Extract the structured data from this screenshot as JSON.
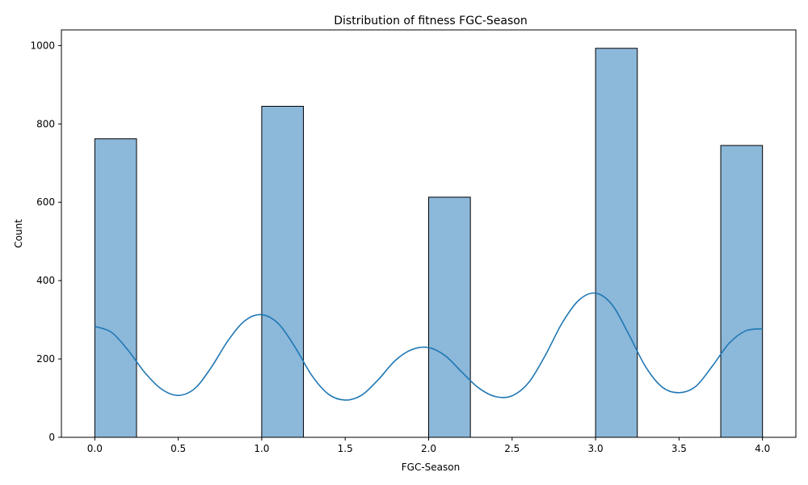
{
  "chart_data": {
    "type": "bar",
    "title": "Distribution of fitness FGC-Season",
    "xlabel": "FGC-Season",
    "ylabel": "Count",
    "xlim": [
      -0.2,
      4.2
    ],
    "ylim": [
      0,
      1040
    ],
    "x_ticks": [
      0.0,
      0.5,
      1.0,
      1.5,
      2.0,
      2.5,
      3.0,
      3.5,
      4.0
    ],
    "x_tick_labels": [
      "0.0",
      "0.5",
      "1.0",
      "1.5",
      "2.0",
      "2.5",
      "3.0",
      "3.5",
      "4.0"
    ],
    "y_ticks": [
      0,
      200,
      400,
      600,
      800,
      1000
    ],
    "y_tick_labels": [
      "0",
      "200",
      "400",
      "600",
      "800",
      "1000"
    ],
    "grid": false,
    "bins": [
      {
        "x0": 0.0,
        "x1": 0.25,
        "count": 762
      },
      {
        "x0": 1.0,
        "x1": 1.25,
        "count": 845
      },
      {
        "x0": 2.0,
        "x1": 2.25,
        "count": 613
      },
      {
        "x0": 3.0,
        "x1": 3.25,
        "count": 993
      },
      {
        "x0": 3.75,
        "x1": 4.0,
        "count": 745
      }
    ],
    "kde": {
      "x": [
        0.0,
        0.1,
        0.2,
        0.3,
        0.4,
        0.5,
        0.6,
        0.7,
        0.8,
        0.9,
        1.0,
        1.1,
        1.2,
        1.3,
        1.4,
        1.5,
        1.6,
        1.7,
        1.8,
        1.9,
        2.0,
        2.1,
        2.2,
        2.3,
        2.4,
        2.5,
        2.6,
        2.7,
        2.8,
        2.9,
        3.0,
        3.1,
        3.2,
        3.3,
        3.4,
        3.5,
        3.6,
        3.7,
        3.8,
        3.9,
        4.0
      ],
      "y": [
        283,
        268,
        222,
        165,
        123,
        107,
        125,
        180,
        248,
        298,
        313,
        290,
        230,
        158,
        110,
        95,
        108,
        148,
        196,
        224,
        229,
        208,
        166,
        126,
        104,
        106,
        140,
        210,
        292,
        350,
        368,
        338,
        262,
        180,
        128,
        114,
        130,
        182,
        240,
        272,
        277
      ]
    },
    "colors": {
      "bar_fill": "#8cb8da",
      "bar_edge": "#000000",
      "kde_line": "#1f77b4"
    }
  }
}
